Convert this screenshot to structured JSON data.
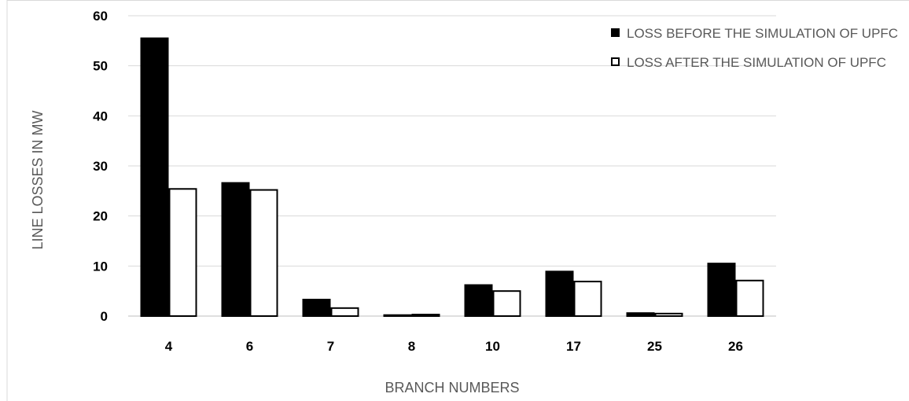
{
  "chart_data": {
    "type": "bar",
    "categories": [
      "4",
      "6",
      "7",
      "8",
      "10",
      "17",
      "25",
      "26"
    ],
    "series": [
      {
        "name": "LOSS BEFORE THE SIMULATION OF UPFC",
        "values": [
          55.5,
          26.6,
          3.3,
          0.2,
          6.2,
          8.9,
          0.6,
          10.5
        ],
        "fill": "#000000"
      },
      {
        "name": "LOSS AFTER THE SIMULATION OF UPFC",
        "values": [
          25.4,
          25.2,
          1.6,
          0.3,
          5.0,
          6.9,
          0.5,
          7.1
        ],
        "fill": "#ffffff"
      }
    ],
    "title": "",
    "xlabel": "BRANCH NUMBERS",
    "ylabel": "LINE LOSSES IN MW",
    "ylim": [
      0,
      60
    ],
    "yticks": [
      "0",
      "10",
      "20",
      "30",
      "40",
      "50",
      "60"
    ],
    "grid": true,
    "legend_position": "top-right"
  },
  "colors": {
    "gridline": "#d9d9d9",
    "axis_label": "#595959",
    "tick_label": "#000000",
    "bar_outline": "#000000"
  }
}
